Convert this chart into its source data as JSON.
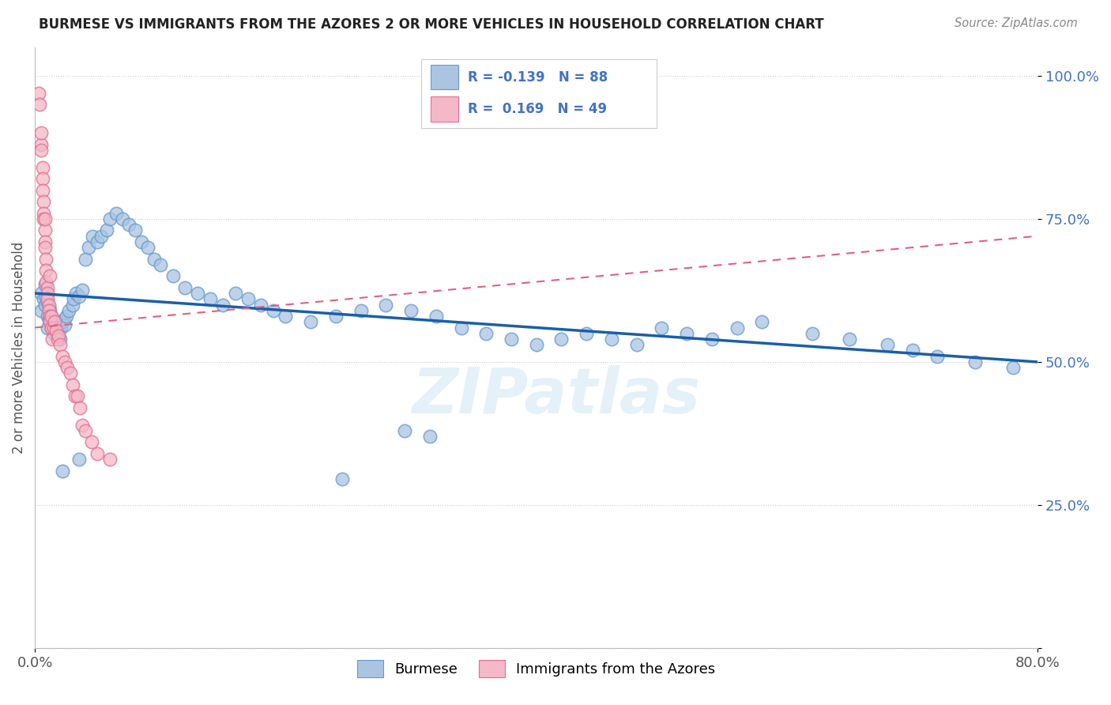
{
  "title": "BURMESE VS IMMIGRANTS FROM THE AZORES 2 OR MORE VEHICLES IN HOUSEHOLD CORRELATION CHART",
  "source": "Source: ZipAtlas.com",
  "xlim": [
    0.0,
    0.8
  ],
  "ylim": [
    0.0,
    1.05
  ],
  "legend_blue_r": "-0.139",
  "legend_blue_n": "88",
  "legend_pink_r": "0.169",
  "legend_pink_n": "49",
  "blue_color": "#aac4e2",
  "blue_edge_color": "#6699cc",
  "pink_color": "#f5b8c8",
  "pink_edge_color": "#e07090",
  "blue_line_color": "#1a5fa8",
  "pink_line_color": "#e06080",
  "watermark": "ZIPatlas",
  "blue_scatter_x": [
    0.005,
    0.005,
    0.007,
    0.008,
    0.008,
    0.009,
    0.01,
    0.01,
    0.01,
    0.011,
    0.011,
    0.012,
    0.012,
    0.013,
    0.013,
    0.014,
    0.015,
    0.015,
    0.016,
    0.017,
    0.018,
    0.019,
    0.02,
    0.021,
    0.022,
    0.023,
    0.024,
    0.025,
    0.027,
    0.03,
    0.031,
    0.033,
    0.035,
    0.038,
    0.04,
    0.043,
    0.046,
    0.05,
    0.053,
    0.057,
    0.06,
    0.065,
    0.07,
    0.075,
    0.08,
    0.085,
    0.09,
    0.095,
    0.1,
    0.11,
    0.12,
    0.13,
    0.14,
    0.15,
    0.16,
    0.17,
    0.18,
    0.19,
    0.2,
    0.22,
    0.24,
    0.26,
    0.28,
    0.3,
    0.32,
    0.34,
    0.36,
    0.38,
    0.4,
    0.42,
    0.44,
    0.46,
    0.48,
    0.5,
    0.52,
    0.54,
    0.56,
    0.58,
    0.62,
    0.65,
    0.68,
    0.7,
    0.72,
    0.75,
    0.78,
    0.295,
    0.315,
    0.245,
    0.035,
    0.022
  ],
  "blue_scatter_y": [
    0.62,
    0.59,
    0.61,
    0.635,
    0.6,
    0.615,
    0.58,
    0.605,
    0.56,
    0.575,
    0.595,
    0.57,
    0.59,
    0.565,
    0.58,
    0.56,
    0.57,
    0.55,
    0.555,
    0.565,
    0.545,
    0.555,
    0.54,
    0.56,
    0.57,
    0.575,
    0.565,
    0.58,
    0.59,
    0.6,
    0.61,
    0.62,
    0.615,
    0.625,
    0.68,
    0.7,
    0.72,
    0.71,
    0.72,
    0.73,
    0.75,
    0.76,
    0.75,
    0.74,
    0.73,
    0.71,
    0.7,
    0.68,
    0.67,
    0.65,
    0.63,
    0.62,
    0.61,
    0.6,
    0.62,
    0.61,
    0.6,
    0.59,
    0.58,
    0.57,
    0.58,
    0.59,
    0.6,
    0.59,
    0.58,
    0.56,
    0.55,
    0.54,
    0.53,
    0.54,
    0.55,
    0.54,
    0.53,
    0.56,
    0.55,
    0.54,
    0.56,
    0.57,
    0.55,
    0.54,
    0.53,
    0.52,
    0.51,
    0.5,
    0.49,
    0.38,
    0.37,
    0.295,
    0.33,
    0.31
  ],
  "pink_scatter_x": [
    0.003,
    0.004,
    0.005,
    0.005,
    0.006,
    0.006,
    0.006,
    0.007,
    0.007,
    0.007,
    0.008,
    0.008,
    0.008,
    0.009,
    0.009,
    0.009,
    0.01,
    0.01,
    0.01,
    0.011,
    0.011,
    0.012,
    0.012,
    0.013,
    0.013,
    0.013,
    0.014,
    0.015,
    0.016,
    0.017,
    0.018,
    0.019,
    0.02,
    0.022,
    0.024,
    0.026,
    0.028,
    0.03,
    0.032,
    0.034,
    0.036,
    0.038,
    0.04,
    0.045,
    0.05,
    0.06,
    0.005,
    0.008,
    0.012
  ],
  "pink_scatter_y": [
    0.97,
    0.95,
    0.88,
    0.87,
    0.84,
    0.82,
    0.8,
    0.78,
    0.76,
    0.75,
    0.73,
    0.71,
    0.7,
    0.68,
    0.66,
    0.64,
    0.63,
    0.62,
    0.61,
    0.6,
    0.59,
    0.58,
    0.57,
    0.56,
    0.58,
    0.56,
    0.54,
    0.56,
    0.57,
    0.555,
    0.54,
    0.545,
    0.53,
    0.51,
    0.5,
    0.49,
    0.48,
    0.46,
    0.44,
    0.44,
    0.42,
    0.39,
    0.38,
    0.36,
    0.34,
    0.33,
    0.9,
    0.75,
    0.65
  ],
  "blue_trend_x": [
    0.0,
    0.8
  ],
  "blue_trend_y": [
    0.62,
    0.5
  ],
  "pink_trend_x": [
    0.0,
    0.8
  ],
  "pink_trend_y": [
    0.56,
    0.72
  ]
}
